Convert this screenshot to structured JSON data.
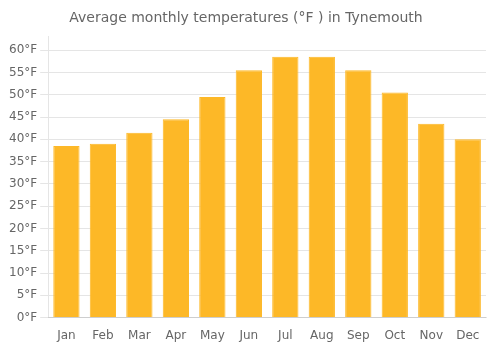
{
  "chart_data": {
    "type": "bar",
    "title": "Average monthly temperatures (°F ) in Tynemouth",
    "categories": [
      "Jan",
      "Feb",
      "Mar",
      "Apr",
      "May",
      "Jun",
      "Jul",
      "Aug",
      "Sep",
      "Oct",
      "Nov",
      "Dec"
    ],
    "values": [
      38.5,
      39,
      41.5,
      44.5,
      49.5,
      55.5,
      58.5,
      58.5,
      55.5,
      50.5,
      43.5,
      40
    ],
    "color": "#FDB827",
    "ylim": [
      0,
      63
    ],
    "yticks": [
      {
        "value": 0,
        "label": "0°F"
      },
      {
        "value": 5,
        "label": "5°F"
      },
      {
        "value": 10,
        "label": "10°F"
      },
      {
        "value": 15,
        "label": "15°F"
      },
      {
        "value": 20,
        "label": "20°F"
      },
      {
        "value": 25,
        "label": "25°F"
      },
      {
        "value": 30,
        "label": "30°F"
      },
      {
        "value": 35,
        "label": "35°F"
      },
      {
        "value": 40,
        "label": "40°F"
      },
      {
        "value": 45,
        "label": "45°F"
      },
      {
        "value": 50,
        "label": "50°F"
      },
      {
        "value": 55,
        "label": "55°F"
      },
      {
        "value": 60,
        "label": "60°F"
      }
    ],
    "grid": true
  }
}
